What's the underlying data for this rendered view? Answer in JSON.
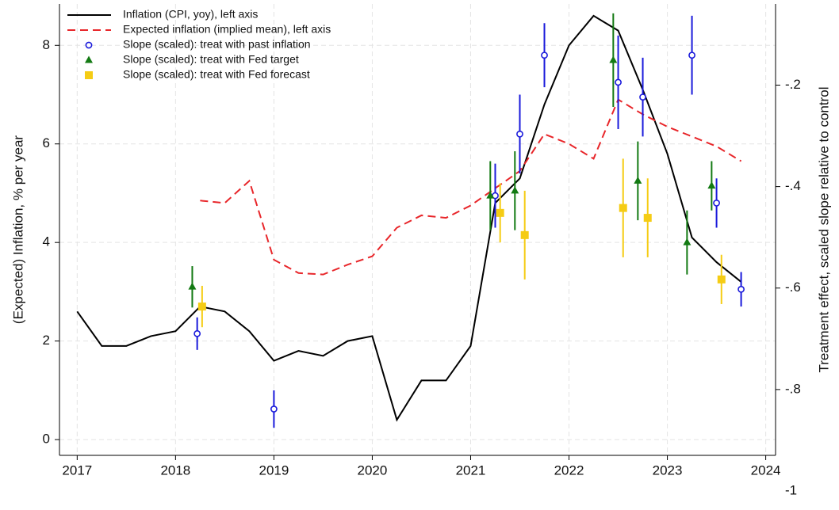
{
  "chart_data": {
    "type": "line",
    "y_label": "(Expected) Inflation, % per year",
    "y2_label": "Treatment effect, scaled slope relative to control",
    "xlim": [
      2016.82,
      2024.1
    ],
    "xticks": [
      2017,
      2018,
      2019,
      2020,
      2021,
      2022,
      2023,
      2024
    ],
    "ylim": [
      -0.32,
      8.84
    ],
    "yticks": [
      0,
      2,
      4,
      6,
      8
    ],
    "y2lim": [
      -1,
      -0.04
    ],
    "y2ticks": [
      {
        "value": -0.2,
        "label": "-.2"
      },
      {
        "value": -0.4,
        "label": "-.4"
      },
      {
        "value": -0.6,
        "label": "-.6"
      },
      {
        "value": -0.8,
        "label": "-.8"
      },
      -1
    ],
    "grid": true,
    "legend": "top-left",
    "series": [
      {
        "name": "Inflation (CPI, yoy), left axis",
        "color": "#000000",
        "style": "solid",
        "x": [
          2017,
          2017.25,
          2017.5,
          2017.75,
          2018,
          2018.25,
          2018.5,
          2018.75,
          2019,
          2019.25,
          2019.5,
          2019.75,
          2020,
          2020.25,
          2020.5,
          2020.75,
          2021,
          2021.25,
          2021.5,
          2021.75,
          2022,
          2022.25,
          2022.5,
          2022.75,
          2023,
          2023.25,
          2023.5,
          2023.75
        ],
        "values": [
          2.6,
          1.9,
          1.9,
          2.1,
          2.2,
          2.7,
          2.6,
          2.2,
          1.6,
          1.8,
          1.7,
          2.0,
          2.1,
          0.4,
          1.2,
          1.2,
          1.9,
          4.8,
          5.3,
          6.8,
          8.0,
          8.6,
          8.3,
          7.1,
          5.8,
          4.1,
          3.6,
          3.2
        ]
      },
      {
        "name": "Expected inflation (implied mean), left axis",
        "color": "#e8262a",
        "style": "dashed",
        "x": [
          2018.25,
          2018.5,
          2018.75,
          2019,
          2019.25,
          2019.5,
          2019.75,
          2020,
          2020.25,
          2020.5,
          2020.75,
          2021,
          2021.25,
          2021.5,
          2021.75,
          2022,
          2022.25,
          2022.5,
          2022.75,
          2023,
          2023.25,
          2023.5,
          2023.75
        ],
        "values": [
          4.85,
          4.8,
          5.25,
          3.65,
          3.38,
          3.35,
          3.55,
          3.72,
          4.3,
          4.55,
          4.5,
          4.75,
          5.1,
          5.45,
          6.2,
          6.0,
          5.7,
          6.9,
          6.6,
          6.35,
          6.15,
          5.95,
          5.65
        ]
      },
      {
        "name": "Slope (scaled): treat with past inflation",
        "color": "#1a1adb",
        "marker": "circle",
        "x": [
          2018.22,
          2019,
          2021.25,
          2021.5,
          2021.75,
          2022.5,
          2022.75,
          2023.25,
          2023.5,
          2023.75
        ],
        "values": [
          2.15,
          0.62,
          4.95,
          6.2,
          7.8,
          7.25,
          6.95,
          7.8,
          4.8,
          3.05
        ],
        "errors": [
          0.33,
          0.38,
          0.65,
          0.8,
          0.65,
          0.95,
          0.8,
          0.8,
          0.5,
          0.35
        ]
      },
      {
        "name": "Slope (scaled): treat with Fed target",
        "color": "#137a13",
        "marker": "triangle",
        "x": [
          2018.17,
          2021.2,
          2021.45,
          2022.45,
          2022.7,
          2023.2,
          2023.45
        ],
        "values": [
          3.1,
          4.95,
          5.05,
          7.7,
          5.25,
          4.0,
          5.15
        ],
        "errors": [
          0.42,
          0.7,
          0.8,
          0.95,
          0.8,
          0.65,
          0.5
        ]
      },
      {
        "name": "Slope (scaled): treat with Fed forecast",
        "color": "#f5cc14",
        "marker": "square",
        "x": [
          2018.27,
          2021.3,
          2021.55,
          2022.55,
          2022.8,
          2023.55
        ],
        "values": [
          2.7,
          4.6,
          4.15,
          4.7,
          4.5,
          3.25
        ],
        "errors": [
          0.42,
          0.6,
          0.9,
          1.0,
          0.8,
          0.5
        ]
      }
    ]
  }
}
